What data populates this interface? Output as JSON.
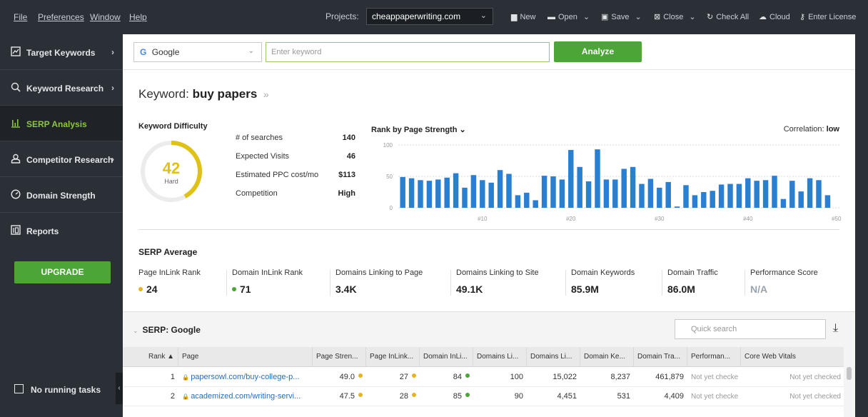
{
  "menu": {
    "file": "File",
    "preferences": "Preferences",
    "window": "Window",
    "help": "Help"
  },
  "projects": {
    "label": "Projects:",
    "current": "cheappaperwriting.com"
  },
  "toolbar": {
    "new": "New",
    "open": "Open",
    "save": "Save",
    "close": "Close",
    "check_all": "Check All",
    "cloud": "Cloud",
    "enter_license": "Enter License"
  },
  "sidebar": {
    "items": [
      {
        "label": "Target Keywords",
        "arrow": "›"
      },
      {
        "label": "Keyword Research",
        "arrow": "›"
      },
      {
        "label": "SERP Analysis",
        "arrow": ""
      },
      {
        "label": "Competitor Research",
        "arrow": "›"
      },
      {
        "label": "Domain Strength",
        "arrow": ""
      },
      {
        "label": "Reports",
        "arrow": ""
      }
    ],
    "upgrade": "UPGRADE",
    "tasks": "No running tasks"
  },
  "search": {
    "engine": "Google",
    "keyword_placeholder": "Enter keyword",
    "analyze": "Analyze"
  },
  "keyword": {
    "prefix": "Keyword:",
    "value": "buy papers"
  },
  "difficulty": {
    "title": "Keyword Difficulty",
    "value": "42",
    "label": "Hard",
    "level": 0.42,
    "color": "#dfc218"
  },
  "stats": [
    {
      "label": "# of searches",
      "value": "140"
    },
    {
      "label": "Expected Visits",
      "value": "46"
    },
    {
      "label": "Estimated PPC cost/mo",
      "value": "$113"
    },
    {
      "label": "Competition",
      "value": "High"
    }
  ],
  "chart_title": "Rank by Page Strength",
  "correlation": {
    "label": "Correlation:",
    "value": "low"
  },
  "chart_data": {
    "type": "bar",
    "title": "Rank by Page Strength",
    "xlabel": "",
    "ylabel": "",
    "ylim": [
      0,
      100
    ],
    "yticks": [
      0,
      50,
      100
    ],
    "xtick_labels": [
      "#10",
      "#20",
      "#30",
      "#40",
      "#50"
    ],
    "xtick_positions": [
      10,
      20,
      30,
      40,
      50
    ],
    "grid": true,
    "color": "#2a7fd0",
    "categories": [
      1,
      2,
      3,
      4,
      5,
      6,
      7,
      8,
      9,
      10,
      11,
      12,
      13,
      14,
      15,
      16,
      17,
      18,
      19,
      20,
      21,
      22,
      23,
      24,
      25,
      26,
      27,
      28,
      29,
      30,
      31,
      32,
      33,
      34,
      35,
      36,
      37,
      38,
      39,
      40,
      41,
      42,
      43,
      44,
      45,
      46,
      47,
      48,
      49,
      50
    ],
    "values": [
      49,
      47,
      44,
      43,
      45,
      48,
      55,
      32,
      52,
      44,
      40,
      60,
      54,
      20,
      24,
      12,
      51,
      50,
      45,
      92,
      65,
      42,
      93,
      45,
      45,
      62,
      65,
      38,
      46,
      32,
      41,
      2,
      36,
      20,
      25,
      27,
      37,
      38,
      38,
      47,
      43,
      44,
      51,
      14,
      43,
      26,
      47,
      44,
      20,
      0
    ]
  },
  "serp_average": {
    "title": "SERP Average",
    "metrics": [
      {
        "label": "Page InLink Rank",
        "value": "24",
        "dot": "#e6b422"
      },
      {
        "label": "Domain InLink Rank",
        "value": "71",
        "dot": "#4ca637"
      },
      {
        "label": "Domains Linking to Page",
        "value": "3.4K",
        "dot": ""
      },
      {
        "label": "Domains Linking to Site",
        "value": "49.1K",
        "dot": ""
      },
      {
        "label": "Domain Keywords",
        "value": "85.9M",
        "dot": ""
      },
      {
        "label": "Domain Traffic",
        "value": "86.0M",
        "dot": ""
      },
      {
        "label": "Performance Score",
        "value": "N/A",
        "dot": ""
      }
    ]
  },
  "serp": {
    "title": "SERP: Google",
    "quick_search_placeholder": "Quick search",
    "columns": [
      "Rank ▲",
      "Page",
      "Page Stren...",
      "Page InLink...",
      "Domain InLi...",
      "Domains Li...",
      "Domains Li...",
      "Domain Ke...",
      "Domain Tra...",
      "Performan...",
      "Core Web Vitals"
    ],
    "rows": [
      {
        "rank": "1",
        "page": "papersowl.com/buy-college-p...",
        "page_strength": "49.0",
        "page_inlink": "27",
        "domain_inlink": "84",
        "domains_linking_page": "100",
        "domains_linking_site": "15,022",
        "domain_keywords": "8,237",
        "domain_traffic": "461,879",
        "performance": "Not yet checke",
        "cwv": "Not yet checked"
      },
      {
        "rank": "2",
        "page": "academized.com/writing-servi...",
        "page_strength": "47.5",
        "page_inlink": "28",
        "domain_inlink": "85",
        "domains_linking_page": "90",
        "domains_linking_site": "4,451",
        "domain_keywords": "531",
        "domain_traffic": "4,409",
        "performance": "Not yet checke",
        "cwv": "Not yet checked"
      }
    ]
  }
}
